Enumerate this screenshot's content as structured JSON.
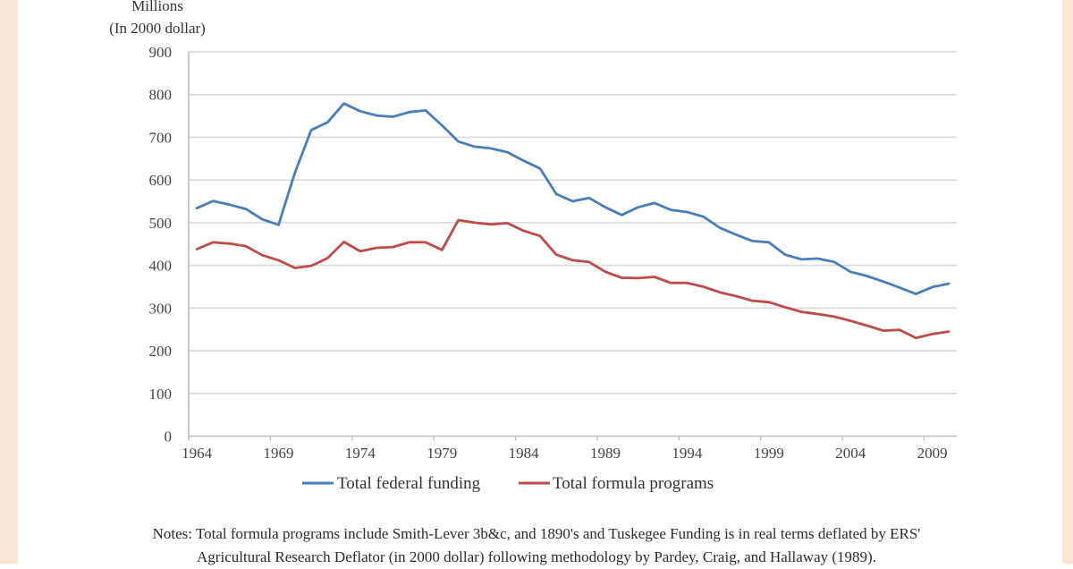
{
  "colors": {
    "background": "#ffffff",
    "border": "#fbe6d6",
    "gridline": "#d9d9d9",
    "axis": "#bfbfbf",
    "federal": "#4a7ebb",
    "formula": "#be4b48"
  },
  "chart_data": {
    "type": "line",
    "title": "",
    "ylabel_lines": [
      "Millions",
      "(In 2000 dollar)"
    ],
    "xlabel": "",
    "ylim": [
      0,
      900
    ],
    "yticks": [
      0,
      100,
      200,
      300,
      400,
      500,
      600,
      700,
      800,
      900
    ],
    "xtick_labels": [
      "1964",
      "1969",
      "1974",
      "1979",
      "1984",
      "1989",
      "1994",
      "1999",
      "2004",
      "2009"
    ],
    "grid": true,
    "legend_position": "bottom",
    "x": [
      1964,
      1965,
      1966,
      1967,
      1968,
      1969,
      1970,
      1971,
      1972,
      1973,
      1974,
      1975,
      1976,
      1977,
      1978,
      1979,
      1980,
      1981,
      1982,
      1983,
      1984,
      1985,
      1986,
      1987,
      1988,
      1989,
      1990,
      1991,
      1992,
      1993,
      1994,
      1995,
      1996,
      1997,
      1998,
      1999,
      2000,
      2001,
      2002,
      2003,
      2004,
      2005,
      2006,
      2007,
      2008,
      2009,
      2010
    ],
    "series": [
      {
        "name": "Total federal funding",
        "color": "#4a7ebb",
        "values": [
          534,
          551,
          542,
          532,
          508,
          495,
          617,
          717,
          735,
          779,
          761,
          751,
          748,
          759,
          763,
          728,
          690,
          678,
          674,
          665,
          645,
          627,
          567,
          550,
          558,
          536,
          518,
          536,
          546,
          530,
          525,
          514,
          488,
          472,
          457,
          454,
          425,
          414,
          416,
          408,
          385,
          375,
          362,
          348,
          333,
          349,
          357
        ]
      },
      {
        "name": "Total formula programs",
        "color": "#be4b48",
        "values": [
          438,
          454,
          451,
          445,
          424,
          412,
          394,
          399,
          417,
          455,
          433,
          441,
          443,
          454,
          454,
          436,
          506,
          500,
          496,
          499,
          481,
          469,
          425,
          412,
          408,
          385,
          371,
          370,
          373,
          359,
          359,
          350,
          337,
          328,
          317,
          314,
          302,
          291,
          286,
          280,
          270,
          259,
          247,
          249,
          230,
          239,
          245
        ]
      }
    ]
  },
  "notes": {
    "line1": "Notes: Total formula programs include Smith-Lever 3b&c, and 1890's and Tuskegee Funding is in real terms deflated by ERS'",
    "line2": "Agricultural Research Deflator (in 2000 dollar) following methodology by Pardey, Craig, and Hallaway (1989)."
  }
}
